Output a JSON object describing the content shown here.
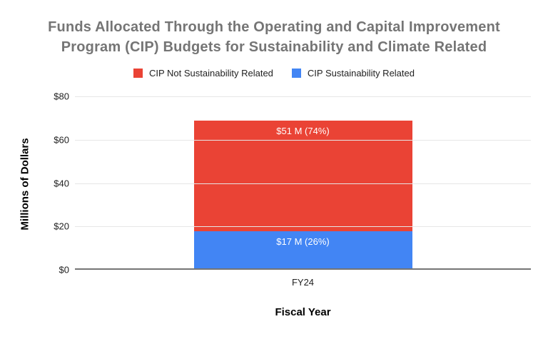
{
  "title": {
    "line1": "Funds Allocated Through the Operating and Capital Improvement",
    "line2": "Program (CIP) Budgets for Sustainability and Climate Related"
  },
  "legend": {
    "items": [
      {
        "label": "CIP Not Sustainability Related",
        "color": "#EA4335"
      },
      {
        "label": "CIP Sustainability Related",
        "color": "#4285F4"
      }
    ]
  },
  "chart_data": {
    "type": "bar",
    "stacked": true,
    "title": "Funds Allocated Through the Operating and Capital Improvement Program (CIP) Budgets for Sustainability and Climate Related",
    "categories": [
      "FY24"
    ],
    "series": [
      {
        "name": "CIP Sustainability Related",
        "color": "#4285F4",
        "values": [
          17
        ],
        "data_labels": [
          "$17 M (26%)"
        ],
        "percent_of_total": [
          26
        ]
      },
      {
        "name": "CIP Not Sustainability Related",
        "color": "#EA4335",
        "values": [
          51
        ],
        "data_labels": [
          "$51 M (74%)"
        ],
        "percent_of_total": [
          74
        ]
      }
    ],
    "totals": [
      68
    ],
    "xlabel": "Fiscal Year",
    "ylabel": "Millions of Dollars",
    "ylim": [
      0,
      80
    ],
    "yticks": [
      0,
      20,
      40,
      60,
      80
    ],
    "ytick_labels": [
      "$0",
      "$20",
      "$40",
      "$60",
      "$80"
    ],
    "grid": true,
    "legend_position": "top",
    "data_label_color": "#ffffff",
    "title_color": "#757575"
  }
}
